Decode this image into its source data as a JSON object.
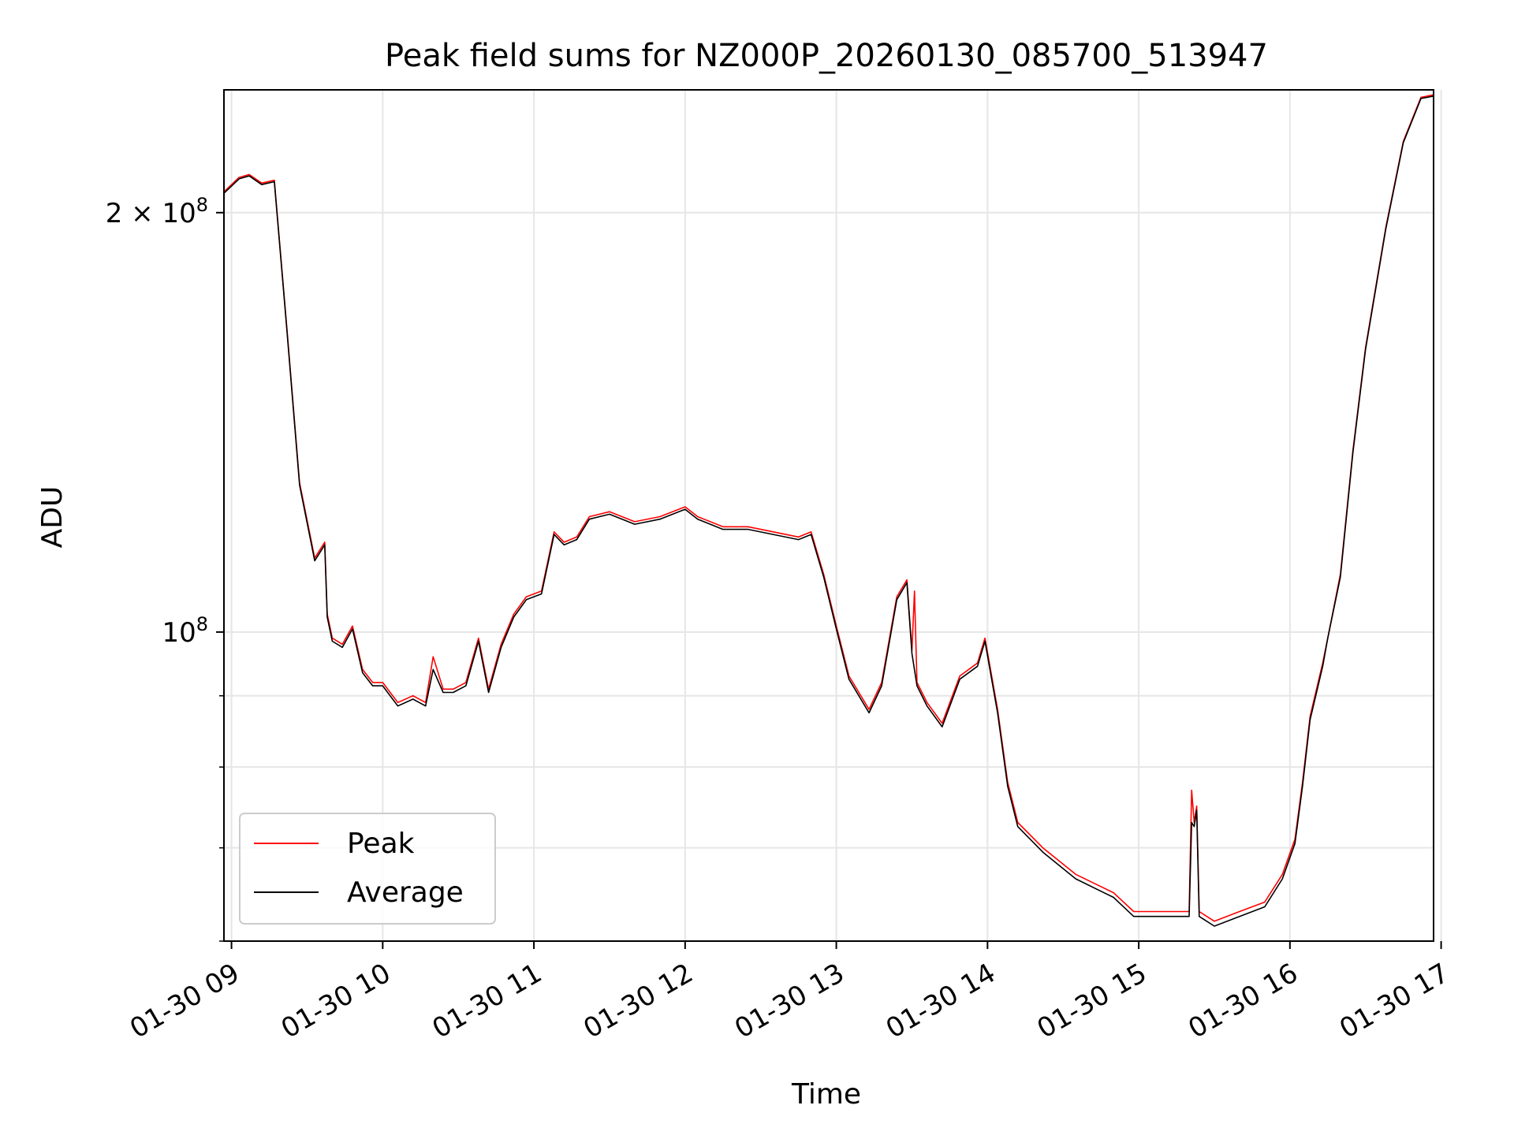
{
  "chart_data": {
    "type": "line",
    "title": "Peak field sums for NZ000P_20260130_085700_513947",
    "xlabel": "Time",
    "ylabel": "ADU",
    "y_scale": "log",
    "ylim": [
      60000000,
      245000000
    ],
    "xlim": [
      "2026-01-30 08:57",
      "2026-01-30 16:57"
    ],
    "xticks": [
      {
        "t": "2026-01-30 09:00",
        "label": "01-30 09"
      },
      {
        "t": "2026-01-30 10:00",
        "label": "01-30 10"
      },
      {
        "t": "2026-01-30 11:00",
        "label": "01-30 11"
      },
      {
        "t": "2026-01-30 12:00",
        "label": "01-30 12"
      },
      {
        "t": "2026-01-30 13:00",
        "label": "01-30 13"
      },
      {
        "t": "2026-01-30 14:00",
        "label": "01-30 14"
      },
      {
        "t": "2026-01-30 15:00",
        "label": "01-30 15"
      },
      {
        "t": "2026-01-30 16:00",
        "label": "01-30 16"
      },
      {
        "t": "2026-01-30 17:00",
        "label": "01-30 17"
      }
    ],
    "yticks_major": [
      {
        "value": 100000000,
        "base": "10",
        "exp": "8",
        "mant": ""
      },
      {
        "value": 200000000,
        "base": "10",
        "exp": "8",
        "mant": "2 × "
      }
    ],
    "yticks_minor": [
      60000000,
      70000000,
      80000000,
      90000000
    ],
    "grid": true,
    "legend_position": "lower-left",
    "series": [
      {
        "name": "Peak",
        "color": "#ff0000",
        "x": [
          "2026-01-30 08:57",
          "2026-01-30 09:03",
          "2026-01-30 09:07",
          "2026-01-30 09:12",
          "2026-01-30 09:17",
          "2026-01-30 09:22",
          "2026-01-30 09:27",
          "2026-01-30 09:33",
          "2026-01-30 09:37",
          "2026-01-30 09:38",
          "2026-01-30 09:40",
          "2026-01-30 09:44",
          "2026-01-30 09:48",
          "2026-01-30 09:52",
          "2026-01-30 09:56",
          "2026-01-30 10:00",
          "2026-01-30 10:06",
          "2026-01-30 10:12",
          "2026-01-30 10:17",
          "2026-01-30 10:20",
          "2026-01-30 10:24",
          "2026-01-30 10:28",
          "2026-01-30 10:33",
          "2026-01-30 10:38",
          "2026-01-30 10:42",
          "2026-01-30 10:47",
          "2026-01-30 10:52",
          "2026-01-30 10:57",
          "2026-01-30 11:03",
          "2026-01-30 11:08",
          "2026-01-30 11:12",
          "2026-01-30 11:17",
          "2026-01-30 11:22",
          "2026-01-30 11:30",
          "2026-01-30 11:40",
          "2026-01-30 11:50",
          "2026-01-30 12:00",
          "2026-01-30 12:05",
          "2026-01-30 12:15",
          "2026-01-30 12:25",
          "2026-01-30 12:35",
          "2026-01-30 12:45",
          "2026-01-30 12:50",
          "2026-01-30 12:55",
          "2026-01-30 13:00",
          "2026-01-30 13:05",
          "2026-01-30 13:13",
          "2026-01-30 13:18",
          "2026-01-30 13:24",
          "2026-01-30 13:28",
          "2026-01-30 13:30",
          "2026-01-30 13:31",
          "2026-01-30 13:32",
          "2026-01-30 13:36",
          "2026-01-30 13:42",
          "2026-01-30 13:49",
          "2026-01-30 13:56",
          "2026-01-30 13:59",
          "2026-01-30 14:04",
          "2026-01-30 14:08",
          "2026-01-30 14:12",
          "2026-01-30 14:22",
          "2026-01-30 14:35",
          "2026-01-30 14:50",
          "2026-01-30 14:58",
          "2026-01-30 15:08",
          "2026-01-30 15:20",
          "2026-01-30 15:21",
          "2026-01-30 15:22",
          "2026-01-30 15:23",
          "2026-01-30 15:24",
          "2026-01-30 15:30",
          "2026-01-30 15:40",
          "2026-01-30 15:50",
          "2026-01-30 15:57",
          "2026-01-30 16:02",
          "2026-01-30 16:05",
          "2026-01-30 16:08",
          "2026-01-30 16:13",
          "2026-01-30 16:15",
          "2026-01-30 16:20",
          "2026-01-30 16:25",
          "2026-01-30 16:30",
          "2026-01-30 16:38",
          "2026-01-30 16:45",
          "2026-01-30 16:52",
          "2026-01-30 16:57"
        ],
        "values": [
          207000000,
          212000000,
          213000000,
          210000000,
          211000000,
          165000000,
          128000000,
          113000000,
          116000000,
          103000000,
          99000000,
          98000000,
          101000000,
          94000000,
          92000000,
          92000000,
          89000000,
          90000000,
          89000000,
          96000000,
          91000000,
          91000000,
          92000000,
          99000000,
          91000000,
          98000000,
          103000000,
          106000000,
          107000000,
          118000000,
          116000000,
          117000000,
          121000000,
          122000000,
          120000000,
          121000000,
          123000000,
          121000000,
          119000000,
          119000000,
          118000000,
          117000000,
          118000000,
          110000000,
          101000000,
          93000000,
          88000000,
          92000000,
          106000000,
          109000000,
          97000000,
          107000000,
          92000000,
          89000000,
          86000000,
          93000000,
          95000000,
          99000000,
          88000000,
          78000000,
          73000000,
          70000000,
          67000000,
          65000000,
          63000000,
          63000000,
          63000000,
          77000000,
          73000000,
          75000000,
          63000000,
          62000000,
          63000000,
          64000000,
          67000000,
          71000000,
          78000000,
          87000000,
          95000000,
          99000000,
          110000000,
          135000000,
          160000000,
          195000000,
          225000000,
          242000000,
          243000000
        ]
      },
      {
        "name": "Average",
        "color": "#000000",
        "x": [
          "2026-01-30 08:57",
          "2026-01-30 09:03",
          "2026-01-30 09:07",
          "2026-01-30 09:12",
          "2026-01-30 09:17",
          "2026-01-30 09:22",
          "2026-01-30 09:27",
          "2026-01-30 09:33",
          "2026-01-30 09:37",
          "2026-01-30 09:38",
          "2026-01-30 09:40",
          "2026-01-30 09:44",
          "2026-01-30 09:48",
          "2026-01-30 09:52",
          "2026-01-30 09:56",
          "2026-01-30 10:00",
          "2026-01-30 10:06",
          "2026-01-30 10:12",
          "2026-01-30 10:17",
          "2026-01-30 10:20",
          "2026-01-30 10:24",
          "2026-01-30 10:28",
          "2026-01-30 10:33",
          "2026-01-30 10:38",
          "2026-01-30 10:42",
          "2026-01-30 10:47",
          "2026-01-30 10:52",
          "2026-01-30 10:57",
          "2026-01-30 11:03",
          "2026-01-30 11:08",
          "2026-01-30 11:12",
          "2026-01-30 11:17",
          "2026-01-30 11:22",
          "2026-01-30 11:30",
          "2026-01-30 11:40",
          "2026-01-30 11:50",
          "2026-01-30 12:00",
          "2026-01-30 12:05",
          "2026-01-30 12:15",
          "2026-01-30 12:25",
          "2026-01-30 12:35",
          "2026-01-30 12:45",
          "2026-01-30 12:50",
          "2026-01-30 12:55",
          "2026-01-30 13:00",
          "2026-01-30 13:05",
          "2026-01-30 13:13",
          "2026-01-30 13:18",
          "2026-01-30 13:24",
          "2026-01-30 13:28",
          "2026-01-30 13:30",
          "2026-01-30 13:32",
          "2026-01-30 13:36",
          "2026-01-30 13:42",
          "2026-01-30 13:49",
          "2026-01-30 13:56",
          "2026-01-30 13:59",
          "2026-01-30 14:04",
          "2026-01-30 14:08",
          "2026-01-30 14:12",
          "2026-01-30 14:22",
          "2026-01-30 14:35",
          "2026-01-30 14:50",
          "2026-01-30 14:58",
          "2026-01-30 15:08",
          "2026-01-30 15:20",
          "2026-01-30 15:21",
          "2026-01-30 15:22",
          "2026-01-30 15:23",
          "2026-01-30 15:24",
          "2026-01-30 15:30",
          "2026-01-30 15:40",
          "2026-01-30 15:50",
          "2026-01-30 15:57",
          "2026-01-30 16:02",
          "2026-01-30 16:05",
          "2026-01-30 16:08",
          "2026-01-30 16:13",
          "2026-01-30 16:15",
          "2026-01-30 16:20",
          "2026-01-30 16:25",
          "2026-01-30 16:30",
          "2026-01-30 16:38",
          "2026-01-30 16:45",
          "2026-01-30 16:52",
          "2026-01-30 16:57"
        ],
        "values": [
          206500000,
          211500000,
          212500000,
          209500000,
          210500000,
          164500000,
          127500000,
          112500000,
          115500000,
          102500000,
          98500000,
          97500000,
          100500000,
          93500000,
          91500000,
          91500000,
          88500000,
          89500000,
          88500000,
          94000000,
          90500000,
          90500000,
          91500000,
          98500000,
          90500000,
          97500000,
          102500000,
          105500000,
          106500000,
          117500000,
          115500000,
          116500000,
          120500000,
          121500000,
          119500000,
          120500000,
          122500000,
          120500000,
          118500000,
          118500000,
          117500000,
          116500000,
          117500000,
          109500000,
          100500000,
          92500000,
          87500000,
          91500000,
          105500000,
          108500000,
          96500000,
          91500000,
          88500000,
          85500000,
          92500000,
          94500000,
          98500000,
          87500000,
          77500000,
          72500000,
          69500000,
          66500000,
          64500000,
          62500000,
          62500000,
          62500000,
          73000000,
          72500000,
          74500000,
          62500000,
          61500000,
          62500000,
          63500000,
          66500000,
          70500000,
          77500000,
          86500000,
          94500000,
          99000000,
          109500000,
          134500000,
          159500000,
          194500000,
          224500000,
          241500000,
          242500000
        ]
      }
    ]
  }
}
